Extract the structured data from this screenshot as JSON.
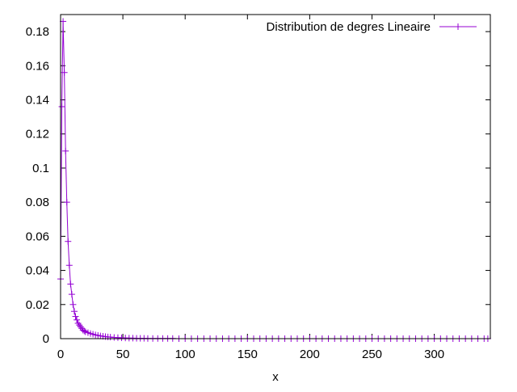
{
  "chart_data": {
    "type": "line",
    "title": "",
    "xlabel": "x",
    "ylabel": "",
    "xlim": [
      0,
      345
    ],
    "ylim": [
      0,
      0.19
    ],
    "x_ticks": [
      0,
      50,
      100,
      150,
      200,
      250,
      300
    ],
    "x_tick_labels": [
      "0",
      "50",
      "100",
      "150",
      "200",
      "250",
      "300"
    ],
    "y_ticks": [
      0,
      0.02,
      0.04,
      0.06,
      0.08,
      0.1,
      0.12,
      0.14,
      0.16,
      0.18
    ],
    "y_tick_labels": [
      "0",
      "0.02",
      "0.04",
      "0.06",
      "0.08",
      "0.1",
      "0.12",
      "0.14",
      "0.16",
      "0.18"
    ],
    "grid": false,
    "legend_position": "top-right",
    "series": [
      {
        "name": "Distribution de degres Lineaire",
        "color": "#9400d3",
        "marker": "plus",
        "x": [
          0,
          1,
          2,
          3,
          4,
          5,
          6,
          7,
          8,
          9,
          10,
          11,
          12,
          13,
          14,
          15,
          16,
          17,
          18,
          19,
          20,
          22,
          24,
          26,
          28,
          30,
          32,
          34,
          36,
          38,
          40,
          43,
          46,
          49,
          52,
          55,
          58,
          61,
          64,
          67,
          70,
          74,
          78,
          82,
          86,
          90,
          95,
          100,
          105,
          110,
          115,
          120,
          125,
          130,
          135,
          140,
          145,
          150,
          155,
          160,
          165,
          170,
          175,
          180,
          185,
          190,
          195,
          200,
          205,
          210,
          215,
          220,
          225,
          230,
          235,
          240,
          245,
          250,
          255,
          260,
          265,
          270,
          275,
          280,
          285,
          290,
          295,
          300,
          305,
          310,
          315,
          320,
          325,
          330,
          335,
          340,
          343
        ],
        "y": [
          0.035,
          0.136,
          0.186,
          0.156,
          0.11,
          0.08,
          0.057,
          0.043,
          0.032,
          0.026,
          0.02,
          0.016,
          0.013,
          0.011,
          0.009,
          0.008,
          0.007,
          0.006,
          0.005,
          0.0045,
          0.004,
          0.0035,
          0.003,
          0.0026,
          0.0022,
          0.0019,
          0.0016,
          0.0014,
          0.0012,
          0.001,
          0.0009,
          0.0007,
          0.0006,
          0.0005,
          0.0004,
          0.0003,
          0.0003,
          0.0002,
          0.0002,
          0.0002,
          0.0001,
          0.0001,
          0.0001,
          0.0001,
          0.0001,
          0.0001,
          0,
          0,
          0,
          0,
          0,
          0,
          0,
          0,
          0,
          0,
          0,
          0,
          0,
          0,
          0,
          0,
          0,
          0,
          0,
          0,
          0,
          0,
          0,
          0,
          0,
          0,
          0,
          0,
          0,
          0,
          0,
          0,
          0,
          0,
          0,
          0,
          0,
          0,
          0,
          0,
          0,
          0,
          0,
          0,
          0,
          0,
          0,
          0,
          0,
          0,
          0
        ]
      }
    ]
  }
}
